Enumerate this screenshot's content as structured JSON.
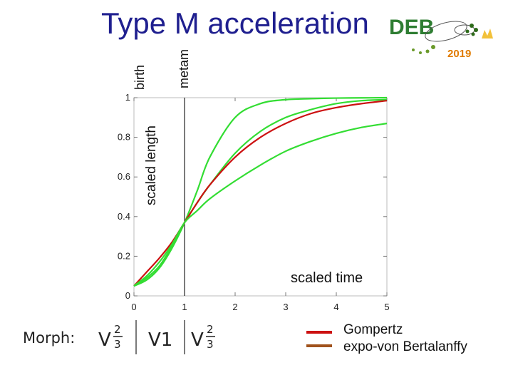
{
  "header": {
    "title": "Type M acceleration"
  },
  "annotations": {
    "birth": "birth",
    "metam": "metam",
    "scaled_length": "scaled length",
    "scaled_time": "scaled time"
  },
  "logo": {
    "text": "DEB",
    "year": "2019",
    "colors": {
      "text": "#2e7d32",
      "year": "#e07b00",
      "crown": "#f2c13a"
    }
  },
  "morph": {
    "label": "Morph:",
    "v_letter": "V",
    "frac_num": "2",
    "frac_den": "3",
    "v1": "V1"
  },
  "legend": {
    "items": [
      {
        "label": "Gompertz",
        "color": "#cc1111"
      },
      {
        "label": "expo-von Bertalanffy",
        "color": "#a0521c"
      }
    ]
  },
  "chart_data": {
    "type": "line",
    "xlim": [
      0,
      5
    ],
    "ylim": [
      0,
      1
    ],
    "xticks": [
      "0",
      "1",
      "2",
      "3",
      "4",
      "5"
    ],
    "yticks": [
      "0",
      "0.2",
      "0.4",
      "0.6",
      "0.8",
      "1"
    ],
    "grid": false,
    "metamorphosis_x": 1,
    "x": [
      0,
      0.25,
      0.5,
      0.75,
      1,
      1.25,
      1.5,
      2,
      2.5,
      3,
      3.5,
      4,
      4.5,
      5
    ],
    "series": [
      {
        "color": "#33dd33",
        "values": [
          0.05,
          0.08,
          0.14,
          0.24,
          0.37,
          0.53,
          0.7,
          0.9,
          0.97,
          0.99,
          0.995,
          0.998,
          0.999,
          1.0
        ]
      },
      {
        "color": "#33dd33",
        "values": [
          0.05,
          0.09,
          0.15,
          0.25,
          0.37,
          0.47,
          0.56,
          0.72,
          0.83,
          0.9,
          0.94,
          0.97,
          0.985,
          0.99
        ]
      },
      {
        "color": "#cc1111",
        "values": [
          0.05,
          0.12,
          0.19,
          0.27,
          0.37,
          0.47,
          0.56,
          0.7,
          0.8,
          0.87,
          0.92,
          0.95,
          0.97,
          0.985
        ]
      },
      {
        "color": "#33dd33",
        "values": [
          0.05,
          0.1,
          0.17,
          0.26,
          0.37,
          0.43,
          0.49,
          0.58,
          0.66,
          0.73,
          0.78,
          0.82,
          0.85,
          0.87
        ]
      }
    ]
  }
}
